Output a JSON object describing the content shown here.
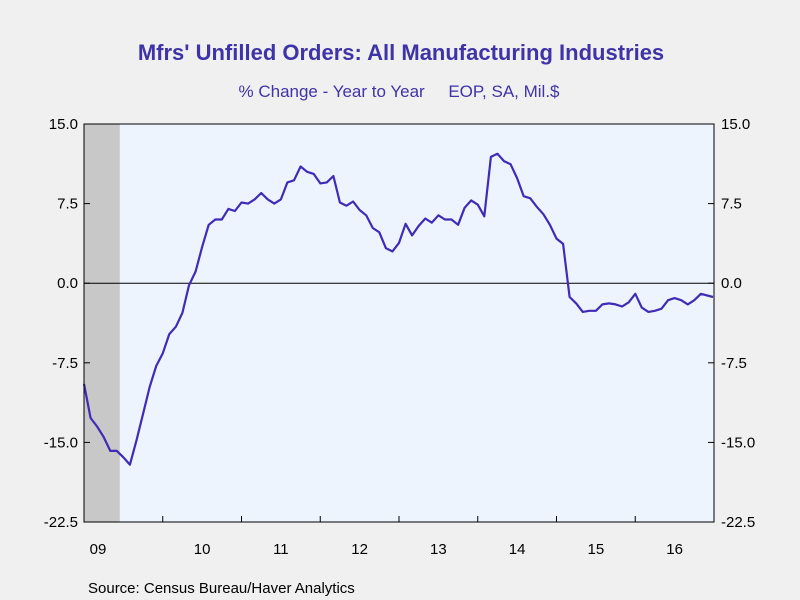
{
  "chart_data": {
    "type": "line",
    "title": "Mfrs' Unfilled Orders: All Manufacturing Industries",
    "subtitle": "% Change - Year to Year     EOP, SA, Mil.$",
    "source": "Source:  Census Bureau/Haver Analytics",
    "ylim": [
      -22.5,
      15.0
    ],
    "y_ticks": [
      "15.0",
      "7.5",
      "0.0",
      "-7.5",
      "-15.0",
      "-22.5"
    ],
    "x_ticks": [
      "09",
      "10",
      "11",
      "12",
      "13",
      "14",
      "15",
      "16"
    ],
    "xlim": [
      "2009-01",
      "2016-12"
    ],
    "recession_shading": [
      "2009-01",
      "2009-06"
    ],
    "grid": false,
    "zero_line": true,
    "colors": {
      "line": "#3f2bb5",
      "plot_bg": "#eef4fe",
      "recession": "#c8c8c8",
      "title": "#3f33a8"
    },
    "series": [
      {
        "x": [
          "2009-01",
          "2009-02",
          "2009-03",
          "2009-04",
          "2009-05",
          "2009-06",
          "2009-07",
          "2009-08",
          "2009-09",
          "2009-10",
          "2009-11",
          "2009-12",
          "2010-01",
          "2010-02",
          "2010-03",
          "2010-04",
          "2010-05",
          "2010-06",
          "2010-07",
          "2010-08",
          "2010-09",
          "2010-10",
          "2010-11",
          "2010-12",
          "2011-01",
          "2011-02",
          "2011-03",
          "2011-04",
          "2011-05",
          "2011-06",
          "2011-07",
          "2011-08",
          "2011-09",
          "2011-10",
          "2011-11",
          "2011-12",
          "2012-01",
          "2012-02",
          "2012-03",
          "2012-04",
          "2012-05",
          "2012-06",
          "2012-07",
          "2012-08",
          "2012-09",
          "2012-10",
          "2012-11",
          "2012-12",
          "2013-01",
          "2013-02",
          "2013-03",
          "2013-04",
          "2013-05",
          "2013-06",
          "2013-07",
          "2013-08",
          "2013-09",
          "2013-10",
          "2013-11",
          "2013-12",
          "2014-01",
          "2014-02",
          "2014-03",
          "2014-04",
          "2014-05",
          "2014-06",
          "2014-07",
          "2014-08",
          "2014-09",
          "2014-10",
          "2014-11",
          "2014-12",
          "2015-01",
          "2015-02",
          "2015-03",
          "2015-04",
          "2015-05",
          "2015-06",
          "2015-07",
          "2015-08",
          "2015-09",
          "2015-10",
          "2015-11",
          "2015-12",
          "2016-01",
          "2016-02",
          "2016-03",
          "2016-04",
          "2016-05",
          "2016-06",
          "2016-07",
          "2016-08",
          "2016-09",
          "2016-10",
          "2016-11",
          "2016-12"
        ],
        "values": [
          -9.5,
          -12.7,
          -13.5,
          -14.5,
          -15.8,
          -15.8,
          -16.4,
          -17.1,
          -14.8,
          -12.3,
          -9.8,
          -7.8,
          -6.6,
          -4.8,
          -4.1,
          -2.8,
          -0.2,
          1.1,
          3.4,
          5.5,
          6.0,
          6.0,
          7.0,
          6.8,
          7.6,
          7.5,
          7.9,
          8.5,
          7.9,
          7.5,
          7.9,
          9.5,
          9.7,
          11.0,
          10.5,
          10.3,
          9.4,
          9.5,
          10.1,
          7.6,
          7.3,
          7.7,
          6.9,
          6.4,
          5.2,
          4.8,
          3.3,
          3.0,
          3.8,
          5.6,
          4.5,
          5.4,
          6.1,
          5.7,
          6.4,
          6.0,
          6.0,
          5.5,
          7.1,
          7.8,
          7.4,
          6.3,
          11.9,
          12.2,
          11.5,
          11.2,
          9.9,
          8.2,
          8.0,
          7.2,
          6.5,
          5.5,
          4.2,
          3.7,
          -1.3,
          -1.9,
          -2.7,
          -2.6,
          -2.6,
          -2.0,
          -1.9,
          -2.0,
          -2.2,
          -1.8,
          -1.0,
          -2.3,
          -2.7,
          -2.6,
          -2.4,
          -1.6,
          -1.4,
          -1.6,
          -2.0,
          -1.6,
          -1.0,
          -1.3
        ]
      }
    ]
  }
}
